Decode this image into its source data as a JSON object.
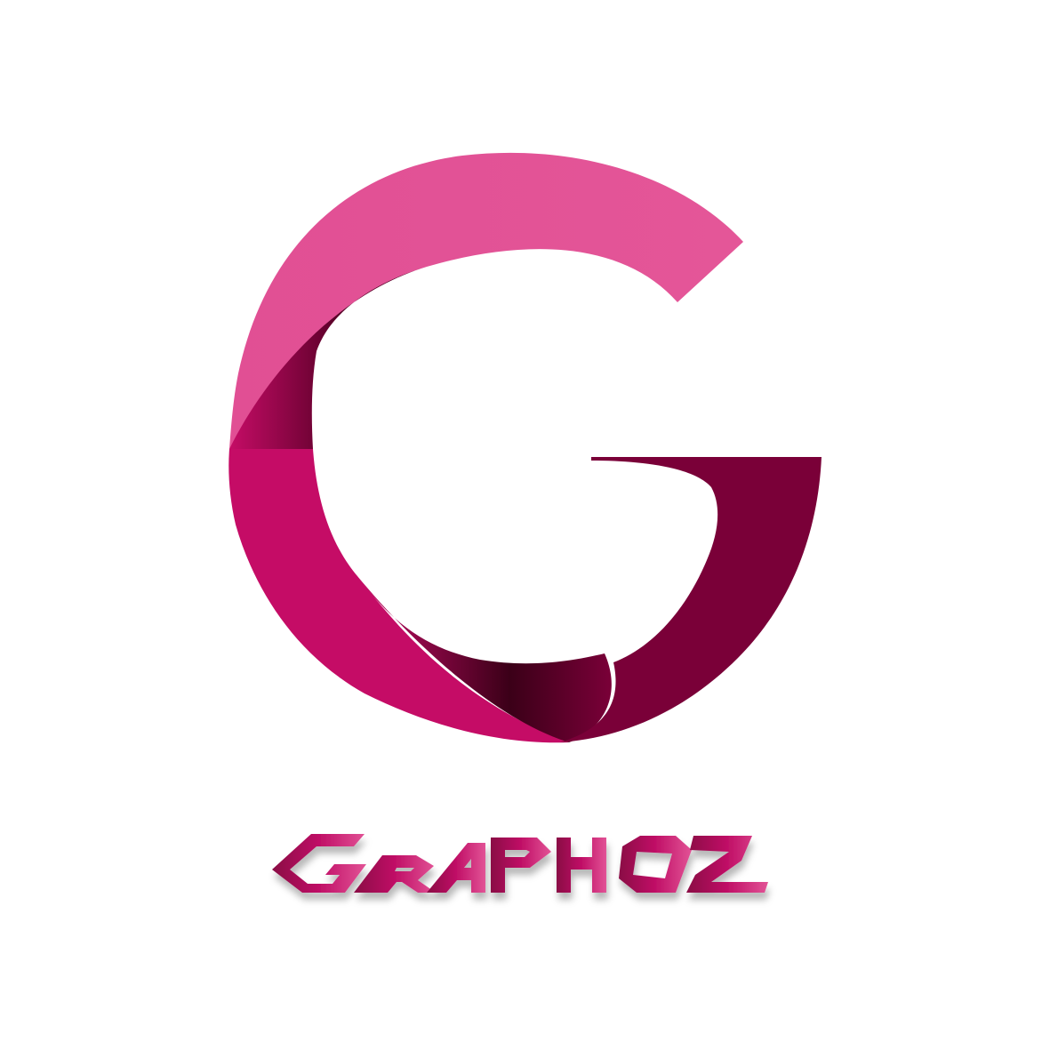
{
  "brand": {
    "name": "GRAPHOZ",
    "mark_letter": "G"
  },
  "colors": {
    "background": "#ffffff",
    "light_pink": "#e25396",
    "magenta": "#c50c66",
    "dark_plum": "#7a0038",
    "shadow": "#3b0018"
  }
}
